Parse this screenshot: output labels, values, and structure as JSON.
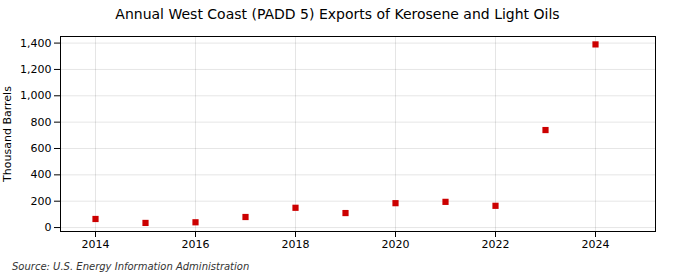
{
  "chart_data": {
    "type": "scatter",
    "title": "Annual West Coast (PADD 5) Exports of Kerosene and Light Oils",
    "ylabel": "Thousand Barrels",
    "source": "Source: U.S. Energy Information Administration",
    "x": [
      2014,
      2015,
      2016,
      2017,
      2018,
      2019,
      2020,
      2021,
      2022,
      2023,
      2024
    ],
    "values": [
      65,
      35,
      40,
      80,
      150,
      110,
      185,
      195,
      165,
      740,
      1390
    ],
    "color": "#cc0000",
    "marker": "square",
    "xlim": [
      2013.3,
      2025.2
    ],
    "xticks": [
      2014,
      2016,
      2018,
      2020,
      2022,
      2024
    ],
    "ylim": [
      -30,
      1450
    ],
    "yticks": [
      0,
      200,
      400,
      600,
      800,
      {
        "value": 1000,
        "label": "1,000"
      },
      {
        "value": 1200,
        "label": "1,200"
      },
      {
        "value": 1400,
        "label": "1,400"
      }
    ],
    "grid": true
  }
}
